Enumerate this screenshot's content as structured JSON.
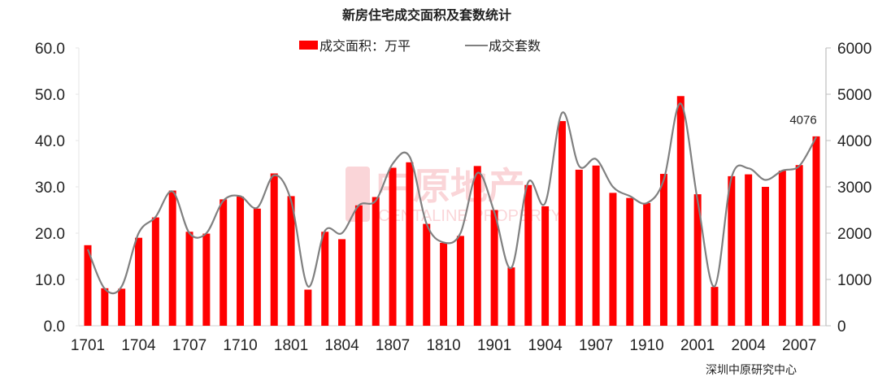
{
  "chart_data": {
    "type": "bar",
    "title": "新房住宅成交面积及套数统计",
    "xlabel": "",
    "ylabel": "",
    "ylim": [
      0,
      60
    ],
    "y2lim": [
      0,
      6000
    ],
    "yticks": [
      "0.0",
      "10.0",
      "20.0",
      "30.0",
      "40.0",
      "50.0",
      "60.0"
    ],
    "y2ticks": [
      "0",
      "1000",
      "2000",
      "3000",
      "4000",
      "5000",
      "6000"
    ],
    "xtick_labels": [
      "1701",
      "1704",
      "1707",
      "1710",
      "1801",
      "1804",
      "1807",
      "1810",
      "1901",
      "1904",
      "1907",
      "1910",
      "2001",
      "2004",
      "2007"
    ],
    "grid": false,
    "legend_position": "top",
    "categories": [
      "1701",
      "1702",
      "1703",
      "1704",
      "1705",
      "1706",
      "1707",
      "1708",
      "1709",
      "1710",
      "1711",
      "1712",
      "1801",
      "1802",
      "1803",
      "1804",
      "1805",
      "1806",
      "1807",
      "1808",
      "1809",
      "1810",
      "1811",
      "1812",
      "1901",
      "1902",
      "1903",
      "1904",
      "1905",
      "1906",
      "1907",
      "1908",
      "1909",
      "1910",
      "1911",
      "1912",
      "2001",
      "2002",
      "2003",
      "2004",
      "2005",
      "2006",
      "2007",
      "2008"
    ],
    "series": [
      {
        "name": "成交面积：万平",
        "type": "bar",
        "axis": "left",
        "color": "#ff0000",
        "values": [
          17.4,
          8.1,
          8.0,
          19.0,
          23.4,
          29.2,
          20.3,
          19.9,
          27.3,
          27.9,
          25.3,
          32.9,
          28.0,
          7.8,
          20.3,
          18.7,
          26.0,
          27.8,
          34.1,
          35.3,
          22.0,
          17.9,
          19.4,
          34.5,
          25.0,
          12.6,
          30.4,
          25.8,
          44.2,
          33.7,
          34.6,
          28.7,
          27.6,
          26.5,
          32.8,
          49.6,
          28.4,
          8.4,
          32.3,
          32.7,
          30.0,
          33.5,
          34.7,
          40.9
        ]
      },
      {
        "name": "成交套数",
        "type": "line",
        "axis": "right",
        "color": "#808080",
        "values": [
          1650,
          800,
          850,
          2000,
          2350,
          2900,
          2000,
          2000,
          2700,
          2800,
          2550,
          3250,
          2700,
          850,
          2050,
          2000,
          2600,
          2700,
          3500,
          3650,
          2200,
          1800,
          2000,
          3300,
          2450,
          1250,
          3100,
          2650,
          4600,
          3450,
          3600,
          3000,
          2800,
          2650,
          3150,
          4800,
          2700,
          850,
          3200,
          3400,
          3150,
          3350,
          3450,
          4076
        ]
      }
    ],
    "annotations": [
      {
        "category": "2008",
        "series": "成交套数",
        "text": "4076"
      }
    ]
  },
  "legend": {
    "bar_label": "成交面积：万平",
    "line_label": "成交套数"
  },
  "source": "深圳中原研究中心",
  "watermark": {
    "cn": "中原地产",
    "en": "CENTALINE PROPERTY"
  }
}
